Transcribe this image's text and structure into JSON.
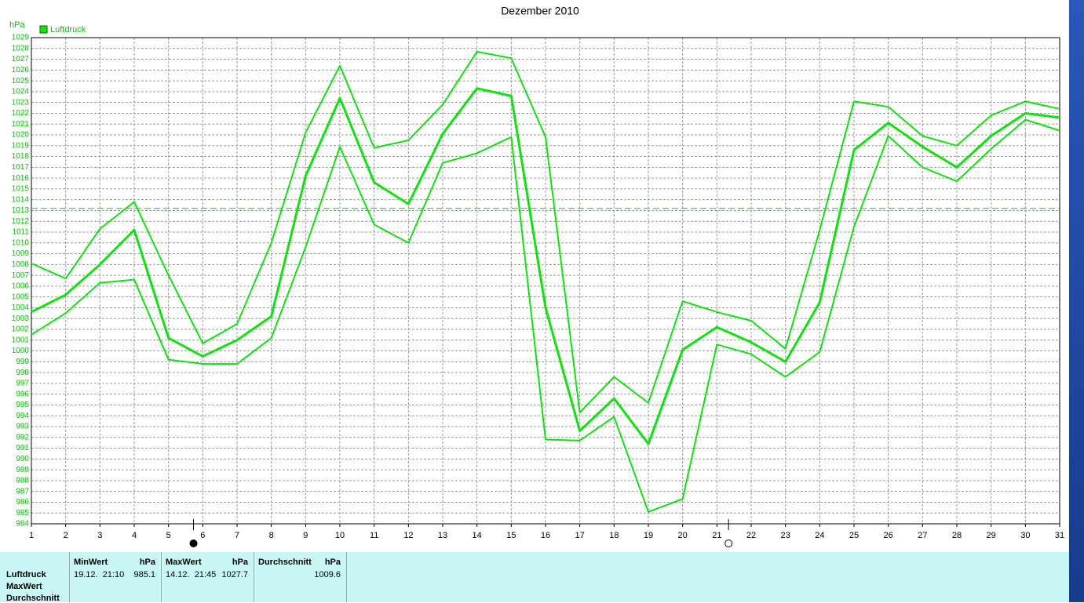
{
  "chart_data": {
    "type": "line",
    "title": "Dezember 2010",
    "y_label": "hPa",
    "x": [
      1,
      2,
      3,
      4,
      5,
      6,
      7,
      8,
      9,
      10,
      11,
      12,
      13,
      14,
      15,
      16,
      17,
      18,
      19,
      20,
      21,
      22,
      23,
      24,
      25,
      26,
      27,
      28,
      29,
      30,
      31
    ],
    "series": [
      {
        "name": "Luftdruck",
        "color": "#11e011",
        "width": 3,
        "values": [
          1003.6,
          1005.2,
          1008,
          1011.2,
          1001.2,
          999.5,
          1001,
          1003.2,
          1016.2,
          1023.4,
          1015.6,
          1013.6,
          1020.1,
          1024.3,
          1023.6,
          1004,
          992.6,
          995.6,
          991.4,
          1000.1,
          1002.2,
          1000.8,
          999,
          1004.5,
          1018.6,
          1021.1,
          1018.9,
          1017,
          1019.9,
          1022,
          1021.6
        ]
      },
      {
        "color": "#11e011",
        "width": 2,
        "values": [
          1008.1,
          1006.7,
          1011.3,
          1013.8,
          1007,
          1000.7,
          1002.5,
          1010,
          1020.2,
          1026.4,
          1018.8,
          1019.5,
          1022.8,
          1027.7,
          1027.1,
          1019.8,
          994.3,
          997.6,
          995.2,
          1004.6,
          1003.6,
          1002.8,
          1000.2,
          1011.2,
          1023.1,
          1022.6,
          1019.9,
          1019,
          1021.8,
          1023.1,
          1022.4
        ]
      },
      {
        "color": "#11e011",
        "width": 2,
        "values": [
          1001.5,
          1003.5,
          1006.3,
          1006.6,
          999.2,
          998.8,
          998.8,
          1001.2,
          1009.6,
          1018.9,
          1011.7,
          1010,
          1017.4,
          1018.3,
          1019.8,
          991.8,
          991.7,
          993.9,
          985.1,
          986.3,
          1000.6,
          999.7,
          997.6,
          999.9,
          1011.5,
          1019.9,
          1017,
          1015.7,
          1018.7,
          1021.4,
          1020.4
        ]
      }
    ],
    "ref_line": 1013.2,
    "xlim": [
      1,
      31
    ],
    "xticks": [
      1,
      2,
      3,
      4,
      5,
      6,
      7,
      8,
      9,
      10,
      11,
      12,
      13,
      14,
      15,
      16,
      17,
      18,
      19,
      20,
      21,
      22,
      23,
      24,
      25,
      26,
      27,
      28,
      29,
      30,
      31
    ],
    "ylim": [
      984,
      1029
    ],
    "yticks": [
      984,
      985,
      986,
      987,
      988,
      989,
      990,
      991,
      992,
      993,
      994,
      995,
      996,
      997,
      998,
      999,
      1000,
      1001,
      1002,
      1003,
      1004,
      1005,
      1006,
      1007,
      1008,
      1009,
      1010,
      1011,
      1012,
      1013,
      1014,
      1015,
      1016,
      1017,
      1018,
      1019,
      1020,
      1021,
      1022,
      1023,
      1024,
      1025,
      1026,
      1027,
      1028,
      1029
    ],
    "grid": true,
    "moon_markers": [
      {
        "x": 5.73,
        "filled": true
      },
      {
        "x": 21.34,
        "filled": false
      }
    ]
  },
  "stats_table": {
    "row_labels": [
      "Luftdruck",
      "MaxWert",
      "Durchschnitt"
    ],
    "columns": [
      {
        "header": "MinWert",
        "unit": "hPa",
        "time": "19.12.  21:10",
        "value": 985.1
      },
      {
        "header": "MaxWert",
        "unit": "hPa",
        "time": "14.12.  21:45",
        "value": 1027.7
      },
      {
        "header": "Durchschnitt",
        "unit": "hPa",
        "value": 1009.6
      }
    ]
  }
}
